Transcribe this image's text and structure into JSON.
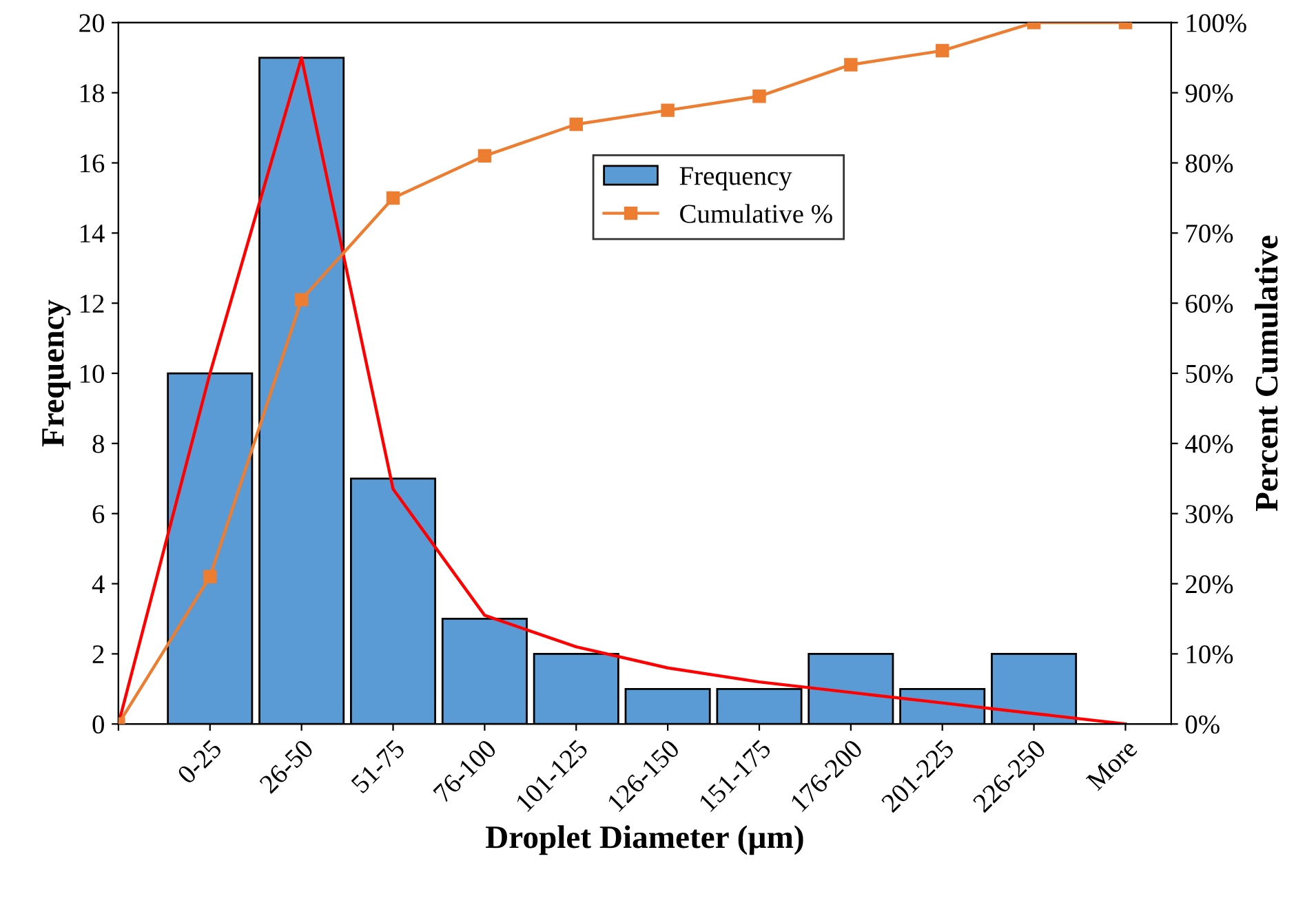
{
  "chart_data": {
    "type": "bar",
    "xlabel": "Droplet Diameter (µm)",
    "ylabel": "Frequency",
    "y2label": "Percent Cumulative",
    "categories": [
      null,
      "0-25",
      "26-50",
      "51-75",
      "76-100",
      "101-125",
      "126-150",
      "151-175",
      "176-200",
      "201-225",
      "226-250",
      "More"
    ],
    "series": [
      {
        "name": "Frequency",
        "color": "#5b9bd5",
        "values": [
          null,
          10,
          19,
          7,
          3,
          2,
          1,
          1,
          2,
          1,
          2,
          null
        ]
      },
      {
        "name": "Cumulative %",
        "type": "line",
        "axis": "y2",
        "color": "#ed7d31",
        "marker": "square",
        "values": [
          0,
          21,
          60.5,
          75,
          81,
          85.5,
          87.5,
          89.5,
          94,
          96,
          100,
          100
        ]
      },
      {
        "type": "line",
        "color": "#ff0000",
        "marker": "none",
        "values": [
          0,
          10,
          19,
          6.7,
          3.1,
          2.2,
          1.6,
          1.2,
          0.9,
          0.6,
          0.3,
          0
        ]
      }
    ],
    "ylim": [
      0,
      20
    ],
    "yticks": [
      0,
      2,
      4,
      6,
      8,
      10,
      12,
      14,
      16,
      18,
      20
    ],
    "y2lim": [
      0,
      100
    ],
    "y2ticks": [
      {
        "value": 0,
        "label": "0%"
      },
      {
        "value": 10,
        "label": "10%"
      },
      {
        "value": 20,
        "label": "20%"
      },
      {
        "value": 30,
        "label": "30%"
      },
      {
        "value": 40,
        "label": "40%"
      },
      {
        "value": 50,
        "label": "50%"
      },
      {
        "value": 60,
        "label": "60%"
      },
      {
        "value": 70,
        "label": "70%"
      },
      {
        "value": 80,
        "label": "80%"
      },
      {
        "value": 90,
        "label": "90%"
      },
      {
        "value": 100,
        "label": "100%"
      }
    ],
    "legend": "top",
    "grid": false
  }
}
